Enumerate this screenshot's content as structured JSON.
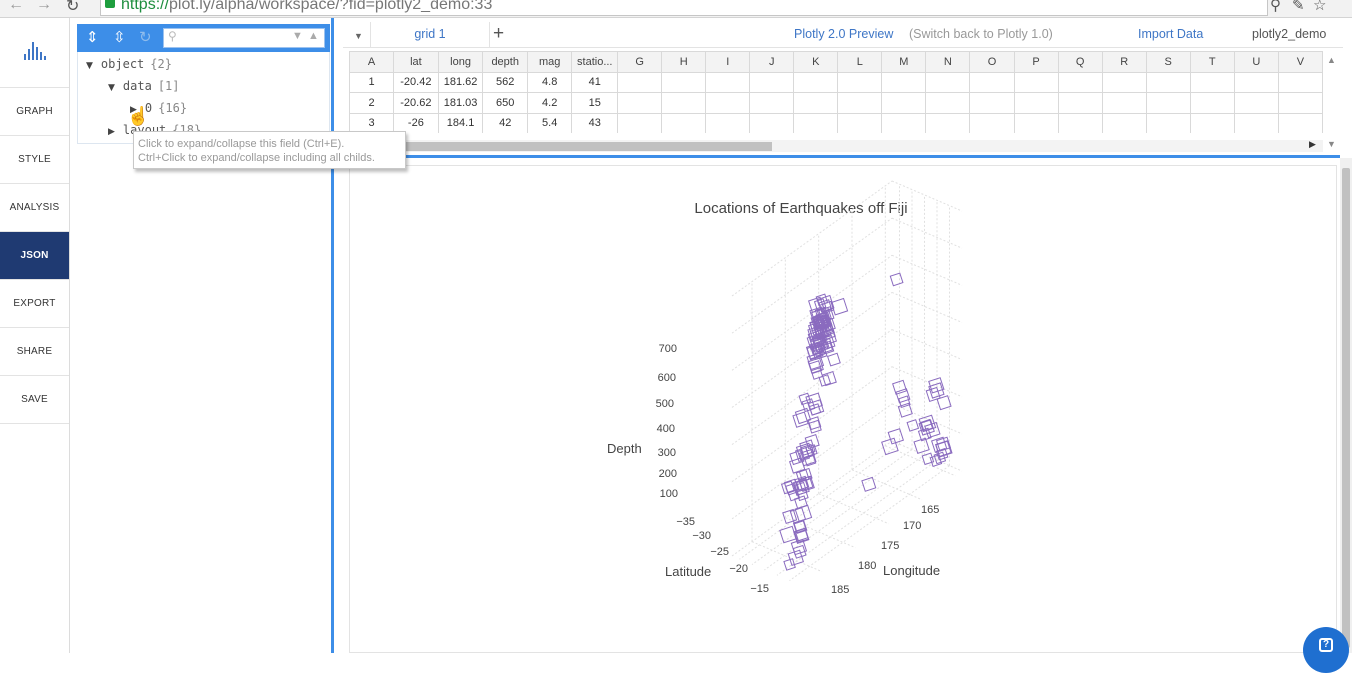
{
  "browser": {
    "url_scheme": "https://",
    "url_rest": "plot.ly/alpha/workspace/?fid=plotly2_demo:33"
  },
  "leftnav": {
    "items": [
      {
        "label": "GRAPH"
      },
      {
        "label": "STYLE"
      },
      {
        "label": "ANALYSIS"
      },
      {
        "label": "JSON"
      },
      {
        "label": "EXPORT"
      },
      {
        "label": "SHARE"
      },
      {
        "label": "SAVE"
      }
    ],
    "active": "JSON"
  },
  "json_tree": {
    "nodes": [
      {
        "key": "object",
        "count": "{2}"
      },
      {
        "key": "data",
        "count": "[1]"
      },
      {
        "key": "0",
        "count": "{16}"
      },
      {
        "key": "layout",
        "count": "{18}"
      }
    ],
    "tooltip_line1": "Click to expand/collapse this field (Ctrl+E).",
    "tooltip_line2": "Ctrl+Click to expand/collapse including all childs."
  },
  "toolbar": {
    "grid_tab": "grid 1",
    "add_tab": "+",
    "preview_link": "Plotly 2.0 Preview",
    "switch_link": "(Switch back to Plotly 1.0)",
    "import_link": "Import Data",
    "user": "plotly2_demo"
  },
  "grid": {
    "columns": [
      "A",
      "lat",
      "long",
      "depth",
      "mag",
      "statio...",
      "G",
      "H",
      "I",
      "J",
      "K",
      "L",
      "M",
      "N",
      "O",
      "P",
      "Q",
      "R",
      "S",
      "T",
      "U",
      "V"
    ],
    "rows": [
      [
        "1",
        "-20.42",
        "181.62",
        "562",
        "4.8",
        "41"
      ],
      [
        "2",
        "-20.62",
        "181.03",
        "650",
        "4.2",
        "15"
      ],
      [
        "3",
        "-26",
        "184.1",
        "42",
        "5.4",
        "43"
      ]
    ]
  },
  "chart_data": {
    "type": "scatter3d",
    "title": "Locations of Earthquakes off Fiji",
    "axes": {
      "z": {
        "label": "Depth",
        "ticks": [
          "100",
          "200",
          "300",
          "400",
          "500",
          "600",
          "700"
        ]
      },
      "x": {
        "label": "Latitude",
        "ticks": [
          "−35",
          "−30",
          "−25",
          "−20",
          "−15"
        ]
      },
      "y": {
        "label": "Longitude",
        "ticks": [
          "165",
          "170",
          "175",
          "180",
          "185"
        ]
      }
    },
    "marker": {
      "symbol": "square-open",
      "color": "#8a6bbf"
    },
    "points": [
      [
        -20.42,
        181.62,
        562
      ],
      [
        -20.62,
        181.03,
        650
      ],
      [
        -26.0,
        184.1,
        42
      ],
      [
        -17.97,
        181.66,
        626
      ],
      [
        -20.42,
        181.96,
        649
      ],
      [
        -19.68,
        184.31,
        195
      ],
      [
        -11.7,
        166.1,
        82
      ],
      [
        -28.11,
        181.93,
        194
      ],
      [
        -28.74,
        181.74,
        211
      ],
      [
        -17.47,
        179.59,
        622
      ],
      [
        -21.44,
        180.69,
        583
      ],
      [
        -12.26,
        167.0,
        249
      ],
      [
        -18.54,
        182.11,
        554
      ],
      [
        -21.0,
        181.66,
        600
      ],
      [
        -20.7,
        169.92,
        139
      ],
      [
        -15.94,
        184.95,
        306
      ],
      [
        -13.64,
        165.96,
        50
      ],
      [
        -17.83,
        181.5,
        590
      ],
      [
        -23.5,
        179.78,
        570
      ],
      [
        -22.63,
        180.31,
        598
      ],
      [
        -20.84,
        181.16,
        576
      ],
      [
        -10.98,
        166.32,
        211
      ],
      [
        -23.3,
        180.16,
        512
      ],
      [
        -30.2,
        182.0,
        125
      ],
      [
        -19.66,
        180.28,
        431
      ],
      [
        -17.94,
        181.49,
        537
      ],
      [
        -14.72,
        167.51,
        155
      ],
      [
        -16.46,
        180.79,
        498
      ],
      [
        -20.97,
        181.47,
        582
      ],
      [
        -19.84,
        182.37,
        328
      ],
      [
        -22.58,
        179.24,
        553
      ],
      [
        -16.32,
        166.74,
        50
      ],
      [
        -15.55,
        185.05,
        292
      ],
      [
        -23.55,
        180.8,
        349
      ],
      [
        -16.3,
        186.0,
        48
      ],
      [
        -25.82,
        179.33,
        600
      ],
      [
        -18.73,
        169.23,
        206
      ],
      [
        -17.64,
        181.28,
        574
      ],
      [
        -17.66,
        181.4,
        585
      ],
      [
        -18.82,
        169.33,
        230
      ],
      [
        -37.37,
        176.78,
        263
      ],
      [
        -15.31,
        186.1,
        96
      ],
      [
        -24.97,
        179.82,
        511
      ],
      [
        -15.49,
        186.04,
        94
      ],
      [
        -19.23,
        169.41,
        246
      ],
      [
        -30.1,
        182.3,
        56
      ],
      [
        -26.4,
        181.7,
        329
      ],
      [
        -11.77,
        166.32,
        70
      ],
      [
        -24.12,
        180.08,
        493
      ],
      [
        -18.97,
        185.25,
        129
      ],
      [
        -18.75,
        182.35,
        554
      ],
      [
        -19.26,
        184.42,
        223
      ],
      [
        -22.75,
        173.2,
        46
      ],
      [
        -21.37,
        180.67,
        593
      ],
      [
        -20.1,
        182.16,
        489
      ],
      [
        -19.85,
        182.13,
        562
      ],
      [
        -22.7,
        181.0,
        445
      ],
      [
        -22.06,
        180.6,
        584
      ],
      [
        -17.8,
        181.35,
        535
      ],
      [
        -24.2,
        179.2,
        530
      ],
      [
        -20.69,
        181.55,
        582
      ],
      [
        -21.16,
        182.4,
        260
      ],
      [
        -13.82,
        172.38,
        613
      ],
      [
        -11.49,
        166.22,
        84
      ],
      [
        -20.68,
        181.41,
        593
      ],
      [
        -17.1,
        184.93,
        302
      ],
      [
        -20.14,
        181.6,
        614
      ],
      [
        -21.96,
        179.62,
        548
      ],
      [
        -20.42,
        181.86,
        530
      ],
      [
        -15.46,
        187.81,
        40
      ],
      [
        -15.31,
        185.8,
        152
      ],
      [
        -19.86,
        184.35,
        201
      ],
      [
        -11.55,
        166.2,
        96
      ],
      [
        -23.74,
        179.99,
        506
      ],
      [
        -17.7,
        181.23,
        546
      ],
      [
        -23.54,
        180.04,
        564
      ],
      [
        -19.21,
        184.7,
        197
      ],
      [
        -12.11,
        167.06,
        264
      ],
      [
        -21.81,
        181.71,
        323
      ],
      [
        -28.98,
        181.11,
        304
      ],
      [
        -34.02,
        180.21,
        75
      ],
      [
        -23.84,
        180.99,
        367
      ],
      [
        -19.57,
        182.38,
        579
      ],
      [
        -20.12,
        183.4,
        284
      ],
      [
        -17.7,
        181.7,
        450
      ],
      [
        -19.66,
        184.31,
        170
      ],
      [
        -21.5,
        170.5,
        117
      ],
      [
        -23.64,
        179.96,
        538
      ],
      [
        -15.43,
        186.3,
        123
      ],
      [
        -15.41,
        186.44,
        69
      ],
      [
        -15.48,
        167.53,
        128
      ],
      [
        -13.36,
        167.06,
        236
      ],
      [
        -20.64,
        182.02,
        497
      ],
      [
        -19.72,
        169.71,
        271
      ],
      [
        -15.44,
        185.26,
        224
      ],
      [
        -19.73,
        182.4,
        375
      ],
      [
        -27.24,
        181.11,
        365
      ],
      [
        -18.16,
        183.41,
        306
      ],
      [
        -13.66,
        166.54,
        50
      ],
      [
        -24.57,
        179.92,
        484
      ],
      [
        -16.98,
        185.61,
        108
      ],
      [
        -26.2,
        178.41,
        583
      ],
      [
        -21.43,
        182.52,
        235
      ],
      [
        -18.3,
        182.0,
        584
      ],
      [
        -22.41,
        180.0,
        571
      ],
      [
        -15.66,
        186.8,
        44
      ],
      [
        -16.65,
        185.56,
        88
      ],
      [
        -24.31,
        179.55,
        546
      ],
      [
        -19.41,
        183.88,
        196
      ],
      [
        -23.36,
        180.02,
        563
      ],
      [
        -21.2,
        181.48,
        614
      ],
      [
        -20.87,
        181.7,
        577
      ],
      [
        -12.01,
        166.66,
        99
      ],
      [
        -24.89,
        180.4,
        448
      ],
      [
        -14.73,
        167.52,
        149
      ],
      [
        -17.51,
        181.25,
        562
      ],
      [
        -17.95,
        181.79,
        612
      ],
      [
        -13.65,
        167.82,
        167
      ],
      [
        -17.35,
        185.48,
        208
      ],
      [
        -21.09,
        181.24,
        593
      ],
      [
        -30.52,
        181.91,
        131
      ],
      [
        -22.92,
        181.25,
        507
      ],
      [
        -25.66,
        180.31,
        486
      ],
      [
        -19.6,
        183.84,
        218
      ],
      [
        -16.06,
        167.78,
        99
      ],
      [
        -17.71,
        185.27,
        168
      ],
      [
        -21.28,
        180.22,
        627
      ],
      [
        -17.85,
        181.14,
        640
      ],
      [
        -32.6,
        181.64,
        118
      ],
      [
        -18.38,
        182.62,
        546
      ],
      [
        -24.7,
        180.57,
        519
      ],
      [
        -20.62,
        183.94,
        271
      ],
      [
        -13.02,
        167.3,
        144
      ],
      [
        -18.8,
        168.08,
        150
      ],
      [
        -20.41,
        180.45,
        604
      ],
      [
        -17.54,
        181.87,
        613
      ]
    ]
  }
}
